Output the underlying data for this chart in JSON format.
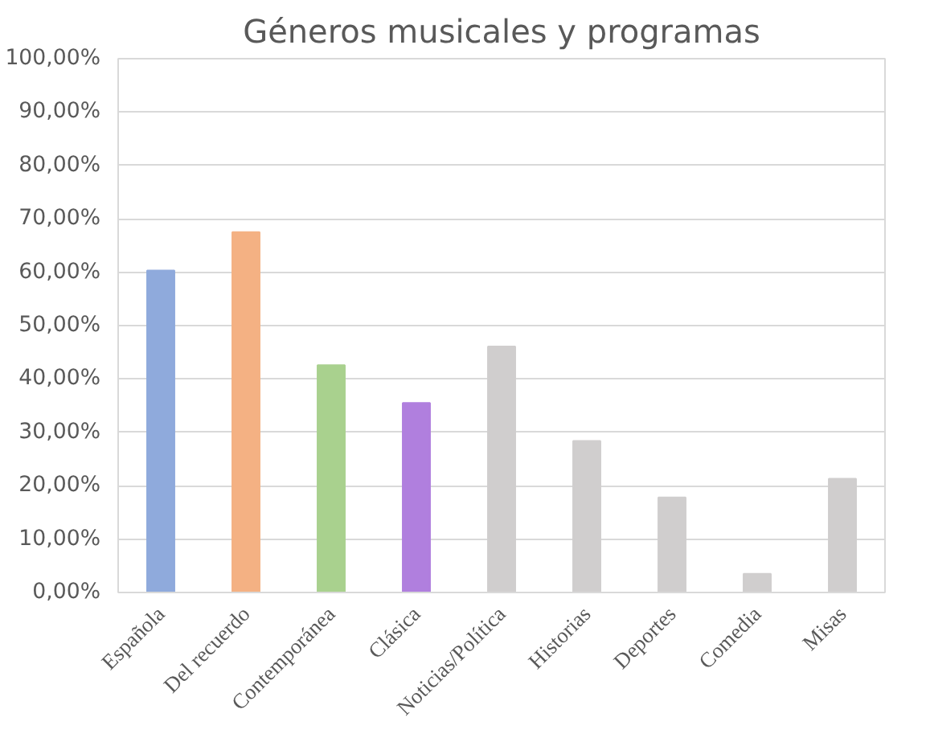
{
  "chart_data": {
    "type": "bar",
    "title": "Géneros musicales y programas",
    "categories": [
      "Española",
      "Del recuerdo",
      "Contemporánea",
      "Clásica",
      "Noticias/Política",
      "Historias",
      "Deportes",
      "Comedia",
      "Misas"
    ],
    "values": [
      60.3,
      67.5,
      42.6,
      35.5,
      46.1,
      28.4,
      17.8,
      3.5,
      21.3
    ],
    "colors": [
      "#8faadc",
      "#f4b183",
      "#a9d18e",
      "#b07fde",
      "#d0cece",
      "#d0cece",
      "#d0cece",
      "#d0cece",
      "#d0cece"
    ],
    "ylim": [
      0,
      100
    ],
    "yticks": [
      {
        "value": 0,
        "label": "0,00%"
      },
      {
        "value": 10,
        "label": "10,00%"
      },
      {
        "value": 20,
        "label": "20,00%"
      },
      {
        "value": 30,
        "label": "30,00%"
      },
      {
        "value": 40,
        "label": "40,00%"
      },
      {
        "value": 50,
        "label": "50,00%"
      },
      {
        "value": 60,
        "label": "60,00%"
      },
      {
        "value": 70,
        "label": "70,00%"
      },
      {
        "value": 80,
        "label": "80,00%"
      },
      {
        "value": 90,
        "label": "90,00%"
      },
      {
        "value": 100,
        "label": "100,00%"
      }
    ],
    "grid": "y"
  }
}
